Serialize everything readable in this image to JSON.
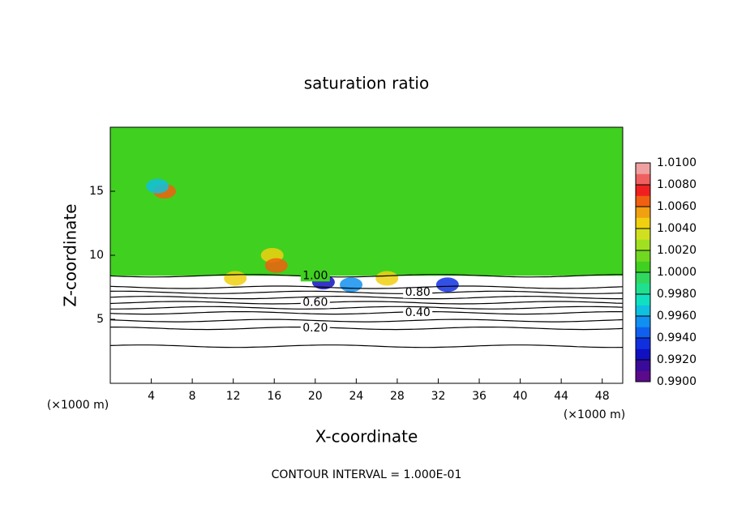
{
  "chart_data": {
    "type": "contour",
    "title": "saturation ratio",
    "x_label": "X-coordinate",
    "y_label": "Z-coordinate",
    "x_unit": "(×1000 m)",
    "y_unit": "(×1000 m)",
    "footer": "CONTOUR INTERVAL = 1.000E-01",
    "xlim": [
      0,
      50
    ],
    "xticks": [
      4,
      8,
      12,
      16,
      20,
      24,
      28,
      32,
      36,
      40,
      44,
      48
    ],
    "ylim": [
      0,
      20
    ],
    "yticks": [
      5,
      10,
      15
    ],
    "field_value": 1.0,
    "contours": [
      {
        "level": 0.1,
        "z": 2.9
      },
      {
        "level": 0.2,
        "z": 4.3,
        "label": "0.20"
      },
      {
        "level": 0.3,
        "z": 4.9
      },
      {
        "level": 0.4,
        "z": 5.5,
        "label": "0.40"
      },
      {
        "level": 0.5,
        "z": 5.9
      },
      {
        "level": 0.6,
        "z": 6.3,
        "label": "0.60"
      },
      {
        "level": 0.7,
        "z": 6.7
      },
      {
        "level": 0.8,
        "z": 7.1,
        "label": "0.80"
      },
      {
        "level": 0.9,
        "z": 7.5
      },
      {
        "level": 1.0,
        "z": 8.4,
        "label": "1.00"
      }
    ],
    "features": [
      {
        "x": 15.8,
        "z": 10.0,
        "value": 1.004
      },
      {
        "x": 16.2,
        "z": 9.2,
        "value": 1.006
      },
      {
        "x": 20.8,
        "z": 7.9,
        "value": 0.992
      },
      {
        "x": 23.5,
        "z": 7.7,
        "value": 0.995
      },
      {
        "x": 5.3,
        "z": 15.0,
        "value": 1.007
      },
      {
        "x": 4.6,
        "z": 15.4,
        "value": 0.996
      },
      {
        "x": 12.2,
        "z": 8.2,
        "value": 1.005
      },
      {
        "x": 27.0,
        "z": 8.2,
        "value": 1.004
      },
      {
        "x": 32.9,
        "z": 7.7,
        "value": 0.993
      }
    ],
    "clim": [
      0.99,
      1.01
    ],
    "colors": [
      "#5a0a8a",
      "#3a0a9a",
      "#1010c0",
      "#1030e0",
      "#1060f0",
      "#1090f0",
      "#10c0e0",
      "#10e0c0",
      "#20e090",
      "#30d860",
      "#40d020",
      "#70d820",
      "#a0e020",
      "#d0e020",
      "#f0d010",
      "#f0a010",
      "#f06010",
      "#f02020",
      "#f06060",
      "#f0a0a0"
    ],
    "cticks": [
      {
        "value": 0.99,
        "label": "0.9900"
      },
      {
        "value": 0.992,
        "label": "0.9920"
      },
      {
        "value": 0.994,
        "label": "0.9940"
      },
      {
        "value": 0.996,
        "label": "0.9960"
      },
      {
        "value": 0.998,
        "label": "0.9980"
      },
      {
        "value": 1.0,
        "label": "1.0000"
      },
      {
        "value": 1.002,
        "label": "1.0020"
      },
      {
        "value": 1.004,
        "label": "1.0040"
      },
      {
        "value": 1.006,
        "label": "1.0060"
      },
      {
        "value": 1.008,
        "label": "1.0080"
      },
      {
        "value": 1.01,
        "label": "1.0100"
      }
    ]
  }
}
